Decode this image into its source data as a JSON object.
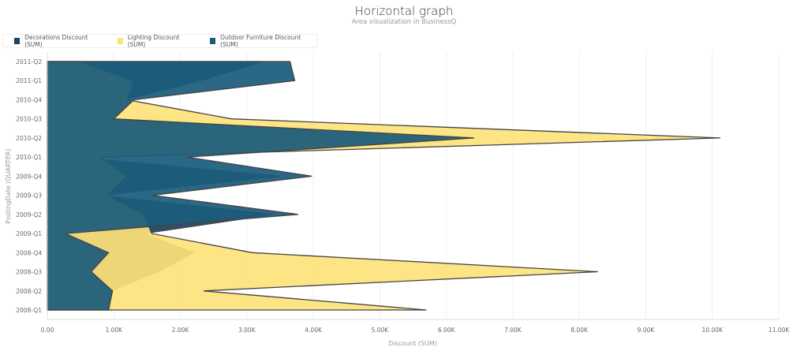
{
  "chart_data": {
    "type": "area",
    "orientation": "horizontal",
    "title": "Horizontal graph",
    "subtitle": "Area visualization in BusinessQ",
    "xlabel": "Discount (SUM)",
    "ylabel": "PostingDate (QUARTER)",
    "xlim": [
      0,
      11000
    ],
    "x_ticks": [
      "0.00",
      "1.00K",
      "2.00K",
      "3.00K",
      "4.00K",
      "5.00K",
      "6.00K",
      "7.00K",
      "8.00K",
      "9.00K",
      "10.00K",
      "11.00K"
    ],
    "grid": true,
    "legend_position": "top-left",
    "categories": [
      "2011-Q2",
      "2011-Q1",
      "2010-Q4",
      "2010-Q3",
      "2010-Q2",
      "2010-Q1",
      "2009-Q4",
      "2009-Q3",
      "2009-Q2",
      "2009-Q1",
      "2008-Q4",
      "2008-Q3",
      "2008-Q2",
      "2008-Q1"
    ],
    "series": [
      {
        "name": "Decorations Discount (SUM)",
        "color": "#1c4560",
        "values": [
          3240,
          2300,
          1150,
          1000,
          6400,
          420,
          3500,
          780,
          3400,
          1450,
          2200,
          1670,
          950,
          950
        ]
      },
      {
        "name": "Lighting Discount (SUM)",
        "color": "#fde27a",
        "values": [
          480,
          1300,
          1200,
          2770,
          10120,
          800,
          1200,
          900,
          1450,
          1570,
          3080,
          8280,
          2350,
          5700
        ]
      },
      {
        "name": "Outdoor Furniture Discount (SUM)",
        "color": "#1b5c7c",
        "values": [
          3650,
          3720,
          1300,
          1000,
          6420,
          2100,
          3980,
          1580,
          3770,
          270,
          920,
          660,
          980,
          920
        ]
      }
    ]
  }
}
